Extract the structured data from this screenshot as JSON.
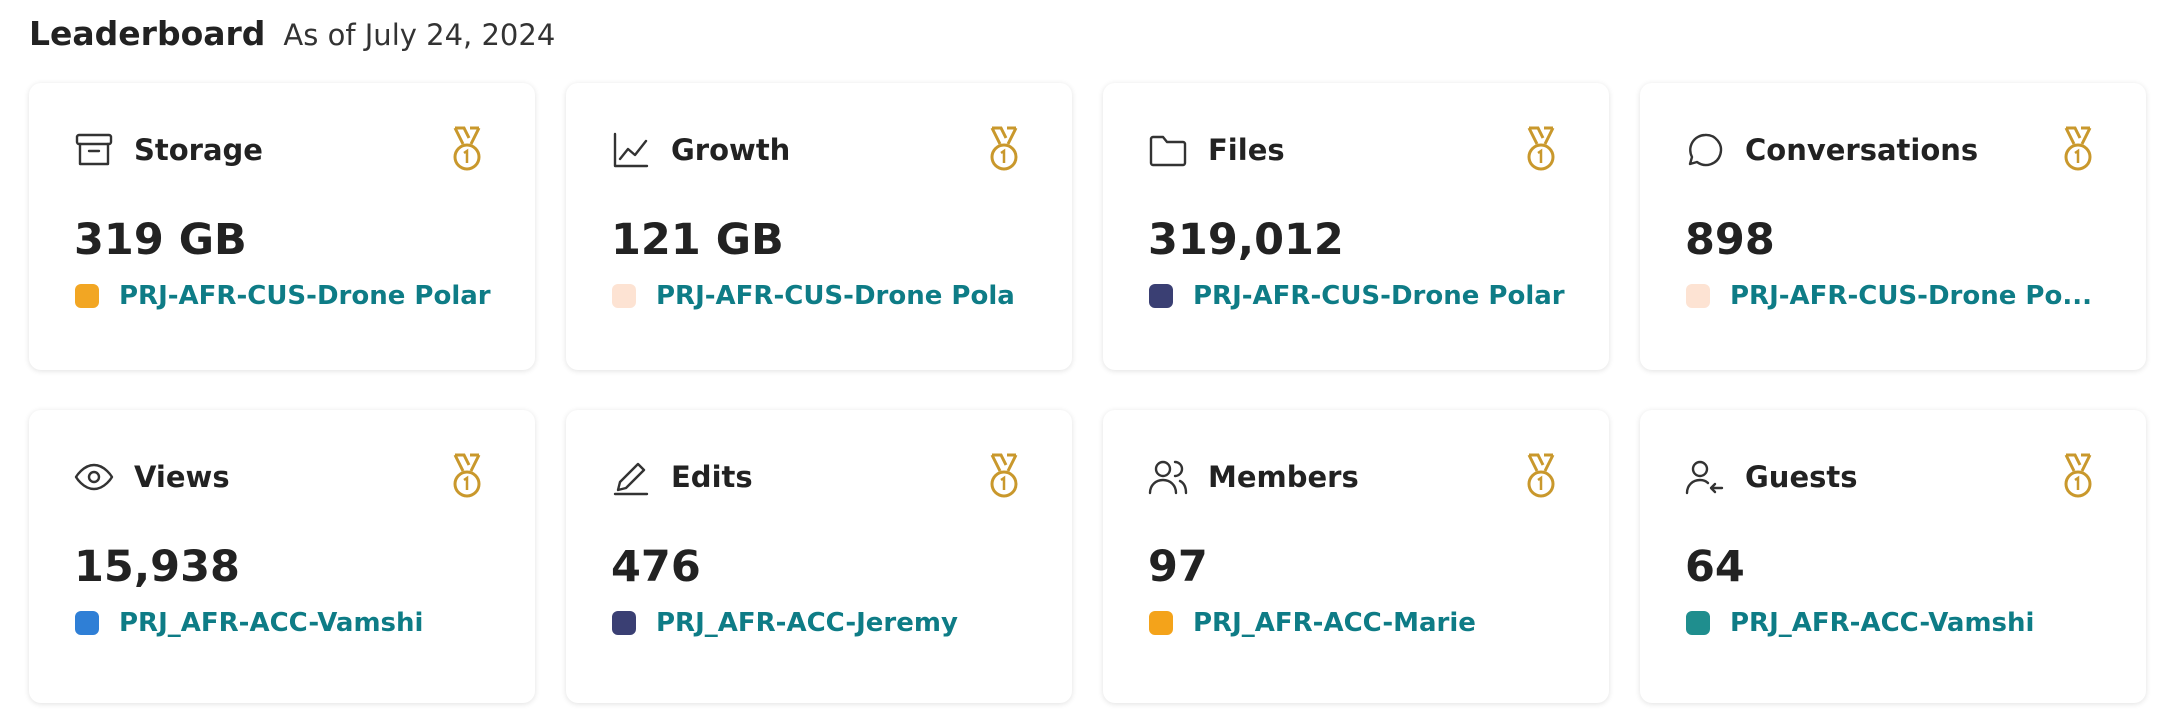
{
  "header": {
    "title": "Leaderboard",
    "subtitle": "As of July 24, 2024"
  },
  "cards": [
    {
      "label": "Storage",
      "value": "319 GB",
      "project": "PRJ-AFR-CUS-Drone Polar"
    },
    {
      "label": "Growth",
      "value": "121 GB",
      "project": "PRJ-AFR-CUS-Drone Pola"
    },
    {
      "label": "Files",
      "value": "319,012",
      "project": "PRJ-AFR-CUS-Drone Polar"
    },
    {
      "label": "Conversations",
      "value": "898",
      "project": "PRJ-AFR-CUS-Drone Po..."
    },
    {
      "label": "Views",
      "value": "15,938",
      "project": "PRJ_AFR-ACC-Vamshi"
    },
    {
      "label": "Edits",
      "value": "476",
      "project": "PRJ_AFR-ACC-Jeremy"
    },
    {
      "label": "Members",
      "value": "97",
      "project": "PRJ_AFR-ACC-Marie"
    },
    {
      "label": "Guests",
      "value": "64",
      "project": "PRJ_AFR-ACC-Vamshi"
    }
  ]
}
